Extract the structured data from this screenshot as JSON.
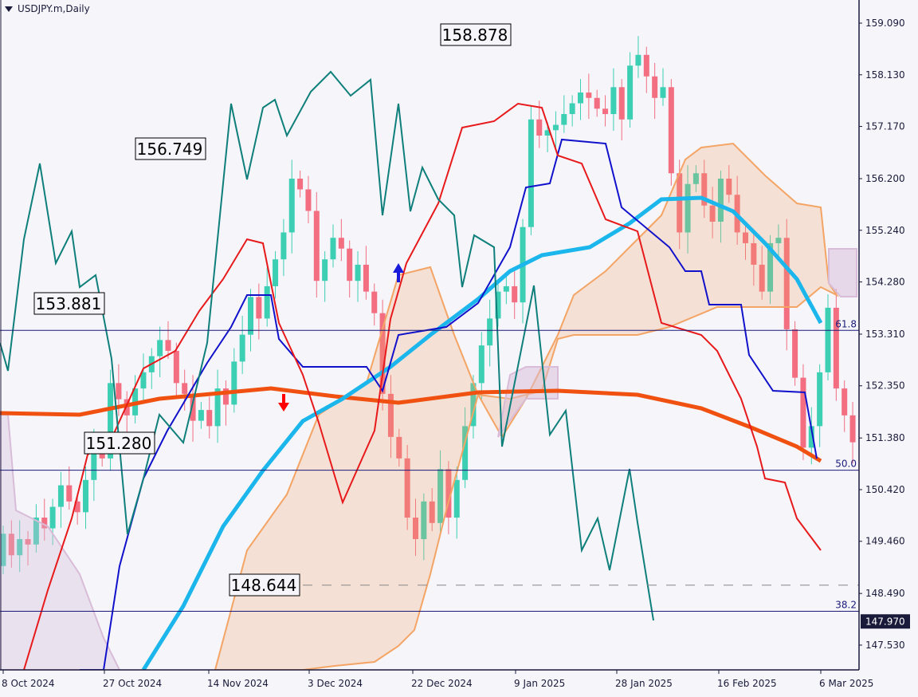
{
  "window": {
    "symbol_title": "USDJPY.m,Daily"
  },
  "chart_data": {
    "type": "candlestick",
    "title": "USDJPY.m,Daily",
    "symbol": "USDJPY.m",
    "timeframe": "Daily",
    "ylim": [
      147.1,
      159.5
    ],
    "y_ticks": [
      "159.090",
      "158.130",
      "157.170",
      "156.200",
      "155.240",
      "154.280",
      "153.310",
      "152.350",
      "151.380",
      "150.420",
      "149.460",
      "148.490",
      "147.530"
    ],
    "x_ticks": [
      "8 Oct 2024",
      "27 Oct 2024",
      "14 Nov 2024",
      "3 Dec 2024",
      "22 Dec 2024",
      "9 Jan 2025",
      "28 Jan 2025",
      "16 Feb 2025",
      "6 Mar 2025"
    ],
    "current_price": "147.970",
    "price_labels": [
      {
        "text": "158.878",
        "value": 158.878,
        "note": "high"
      },
      {
        "text": "156.749",
        "value": 156.749,
        "note": "swing high"
      },
      {
        "text": "153.881",
        "value": 153.881,
        "note": "swing high"
      },
      {
        "text": "151.280",
        "value": 151.28,
        "note": "swing low"
      },
      {
        "text": "148.644",
        "value": 148.644,
        "note": "swing low"
      }
    ],
    "fibonacci_levels": [
      {
        "label": "61.8",
        "price": 153.38
      },
      {
        "label": "50.0",
        "price": 150.78
      },
      {
        "label": "38.2",
        "price": 148.16
      }
    ],
    "horizontal_dashed_line": 148.644,
    "indicators": [
      "Ichimoku Kinko Hyo (Tenkan red, Kijun blue, Chikou teal, Kumo orange/lilac)",
      "MA (sky blue)",
      "MA 200 (orange-red)"
    ],
    "signals": [
      {
        "type": "buy-arrow",
        "color": "#1a1adb",
        "near": "mid Dec 2024"
      },
      {
        "type": "sell-arrow",
        "color": "#ff0000",
        "near": "late Nov 2024"
      }
    ],
    "colors": {
      "bull": "#3ccfb4",
      "bear": "#f26e80",
      "tenkan": "#e8191b",
      "kijun": "#1111cc",
      "chikou": "#0e7f7a",
      "kumo_bull": "#f4a464",
      "kumo_bear": "#d8bcd8",
      "ma_fast": "#1bb6ec",
      "ma_slow": "#f05010",
      "fib": "#1a1a7a",
      "background": "#f5f5fa",
      "axis": "#1a1a3a"
    }
  }
}
